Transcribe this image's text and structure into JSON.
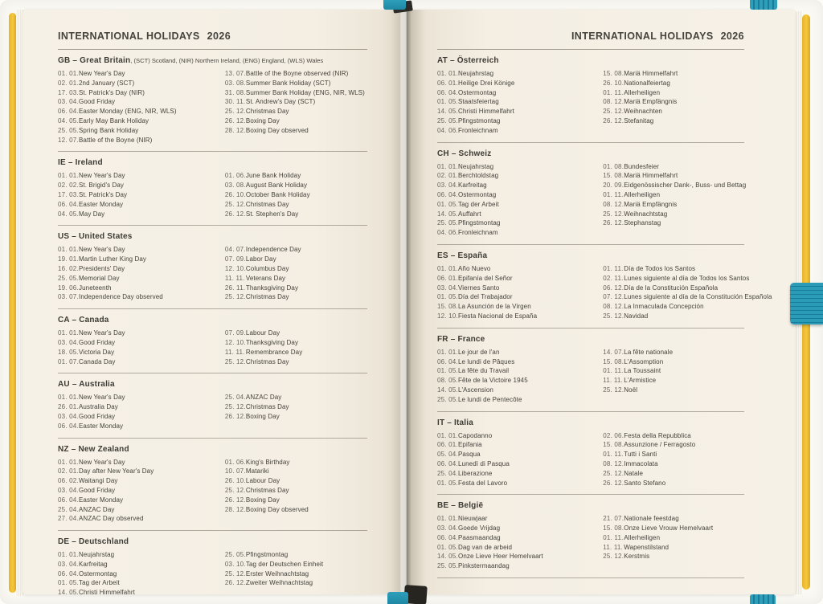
{
  "colors": {
    "cover_yellow": "#f4c83f",
    "elastic_teal": "#2596b2",
    "page_cream": "#f4eee3",
    "ink": "#44423c"
  },
  "pages": {
    "left": {
      "header": {
        "title": "INTERNATIONAL HOLIDAYS",
        "year": "2026"
      },
      "sections": [
        {
          "code": "gb",
          "title": "GB – Great Britain",
          "subtitle": ", (SCT) Scotland, (NIR) Northern Ireland, (ENG) England, (WLS) Wales",
          "col1": [
            {
              "d": "01. 01.",
              "t": "New Year's Day"
            },
            {
              "d": "02. 01.",
              "t": "2nd January (SCT)"
            },
            {
              "d": "17. 03.",
              "t": "St. Patrick's Day (NIR)"
            },
            {
              "d": "03. 04.",
              "t": "Good Friday"
            },
            {
              "d": "06. 04.",
              "t": "Easter Monday (ENG, NIR, WLS)"
            },
            {
              "d": "04. 05.",
              "t": "Early May Bank Holiday"
            },
            {
              "d": "25. 05.",
              "t": "Spring Bank Holiday"
            },
            {
              "d": "12. 07.",
              "t": "Battle of the Boyne (NIR)"
            }
          ],
          "col2": [
            {
              "d": "13. 07.",
              "t": "Battle of the Boyne observed (NIR)"
            },
            {
              "d": "03. 08.",
              "t": "Summer Bank Holiday (SCT)"
            },
            {
              "d": "31. 08.",
              "t": "Summer Bank Holiday (ENG, NIR, WLS)"
            },
            {
              "d": "30. 11.",
              "t": "St. Andrew's Day (SCT)"
            },
            {
              "d": "25. 12.",
              "t": "Christmas Day"
            },
            {
              "d": "26. 12.",
              "t": "Boxing Day"
            },
            {
              "d": "28. 12.",
              "t": "Boxing Day observed"
            }
          ]
        },
        {
          "code": "ie",
          "title": "IE – Ireland",
          "subtitle": "",
          "col1": [
            {
              "d": "01. 01.",
              "t": "New Year's Day"
            },
            {
              "d": "02. 02.",
              "t": "St. Brigid's Day"
            },
            {
              "d": "17. 03.",
              "t": "St. Patrick's Day"
            },
            {
              "d": "06. 04.",
              "t": "Easter Monday"
            },
            {
              "d": "04. 05.",
              "t": "May Day"
            }
          ],
          "col2": [
            {
              "d": "01. 06.",
              "t": "June Bank Holiday"
            },
            {
              "d": "03. 08.",
              "t": "August Bank Holiday"
            },
            {
              "d": "26. 10.",
              "t": "October Bank Holiday"
            },
            {
              "d": "25. 12.",
              "t": "Christmas Day"
            },
            {
              "d": "26. 12.",
              "t": "St. Stephen's Day"
            }
          ]
        },
        {
          "code": "us",
          "title": "US – United States",
          "subtitle": "",
          "col1": [
            {
              "d": "01. 01.",
              "t": "New Year's Day"
            },
            {
              "d": "19. 01.",
              "t": "Martin Luther King Day"
            },
            {
              "d": "16. 02.",
              "t": "Presidents' Day"
            },
            {
              "d": "25. 05.",
              "t": "Memorial Day"
            },
            {
              "d": "19. 06.",
              "t": "Juneteenth"
            },
            {
              "d": "03. 07.",
              "t": "Independence Day observed"
            }
          ],
          "col2": [
            {
              "d": "04. 07.",
              "t": "Independence Day"
            },
            {
              "d": "07. 09.",
              "t": "Labor Day"
            },
            {
              "d": "12. 10.",
              "t": "Columbus Day"
            },
            {
              "d": "11. 11.",
              "t": "Veterans Day"
            },
            {
              "d": "26. 11.",
              "t": "Thanksgiving Day"
            },
            {
              "d": "25. 12.",
              "t": "Christmas Day"
            }
          ]
        },
        {
          "code": "ca",
          "title": "CA – Canada",
          "subtitle": "",
          "col1": [
            {
              "d": "01. 01.",
              "t": "New Year's Day"
            },
            {
              "d": "03. 04.",
              "t": "Good Friday"
            },
            {
              "d": "18. 05.",
              "t": "Victoria Day"
            },
            {
              "d": "01. 07.",
              "t": "Canada Day"
            }
          ],
          "col2": [
            {
              "d": "07. 09.",
              "t": "Labour Day"
            },
            {
              "d": "12. 10.",
              "t": "Thanksgiving Day"
            },
            {
              "d": "11. 11.",
              "t": "Remembrance Day"
            },
            {
              "d": "25. 12.",
              "t": "Christmas Day"
            }
          ]
        },
        {
          "code": "au",
          "title": "AU – Australia",
          "subtitle": "",
          "col1": [
            {
              "d": "01. 01.",
              "t": "New Year's Day"
            },
            {
              "d": "26. 01.",
              "t": "Australia Day"
            },
            {
              "d": "03. 04.",
              "t": "Good Friday"
            },
            {
              "d": "06. 04.",
              "t": "Easter Monday"
            }
          ],
          "col2": [
            {
              "d": "25. 04.",
              "t": "ANZAC Day"
            },
            {
              "d": "25. 12.",
              "t": "Christmas Day"
            },
            {
              "d": "26. 12.",
              "t": "Boxing Day"
            }
          ]
        },
        {
          "code": "nz",
          "title": "NZ – New Zealand",
          "subtitle": "",
          "col1": [
            {
              "d": "01. 01.",
              "t": "New Year's Day"
            },
            {
              "d": "02. 01.",
              "t": "Day after New Year's Day"
            },
            {
              "d": "06. 02.",
              "t": "Waitangi Day"
            },
            {
              "d": "03. 04.",
              "t": "Good Friday"
            },
            {
              "d": "06. 04.",
              "t": "Easter Monday"
            },
            {
              "d": "25. 04.",
              "t": "ANZAC Day"
            },
            {
              "d": "27. 04.",
              "t": "ANZAC Day observed"
            }
          ],
          "col2": [
            {
              "d": "01. 06.",
              "t": "King's Birthday"
            },
            {
              "d": "10. 07.",
              "t": "Matariki"
            },
            {
              "d": "26. 10.",
              "t": "Labour Day"
            },
            {
              "d": "25. 12.",
              "t": "Christmas Day"
            },
            {
              "d": "26. 12.",
              "t": "Boxing Day"
            },
            {
              "d": "28. 12.",
              "t": "Boxing Day observed"
            }
          ]
        },
        {
          "code": "de",
          "title": "DE – Deutschland",
          "subtitle": "",
          "col1": [
            {
              "d": "01. 01.",
              "t": "Neujahrstag"
            },
            {
              "d": "03. 04.",
              "t": "Karfreitag"
            },
            {
              "d": "06. 04.",
              "t": "Ostermontag"
            },
            {
              "d": "01. 05.",
              "t": "Tag der Arbeit"
            },
            {
              "d": "14. 05.",
              "t": "Christi Himmelfahrt"
            }
          ],
          "col2": [
            {
              "d": "25. 05.",
              "t": "Pfingstmontag"
            },
            {
              "d": "03. 10.",
              "t": "Tag der Deutschen Einheit"
            },
            {
              "d": "25. 12.",
              "t": "Erster Weihnachtstag"
            },
            {
              "d": "26. 12.",
              "t": "Zweiter Weihnachtstag"
            }
          ]
        }
      ]
    },
    "right": {
      "header": {
        "title": "INTERNATIONAL HOLIDAYS",
        "year": "2026"
      },
      "sections": [
        {
          "code": "at",
          "title": "AT – Österreich",
          "subtitle": "",
          "col1": [
            {
              "d": "01. 01.",
              "t": "Neujahrstag"
            },
            {
              "d": "06. 01.",
              "t": "Heilige Drei Könige"
            },
            {
              "d": "06. 04.",
              "t": "Ostermontag"
            },
            {
              "d": "01. 05.",
              "t": "Staatsfeiertag"
            },
            {
              "d": "14. 05.",
              "t": "Christi Himmelfahrt"
            },
            {
              "d": "25. 05.",
              "t": "Pfingstmontag"
            },
            {
              "d": "04. 06.",
              "t": "Fronleichnam"
            }
          ],
          "col2": [
            {
              "d": "15. 08.",
              "t": "Mariä Himmelfahrt"
            },
            {
              "d": "26. 10.",
              "t": "Nationalfeiertag"
            },
            {
              "d": "01. 11.",
              "t": "Allerheiligen"
            },
            {
              "d": "08. 12.",
              "t": "Mariä Empfängnis"
            },
            {
              "d": "25. 12.",
              "t": "Weihnachten"
            },
            {
              "d": "26. 12.",
              "t": "Stefanitag"
            }
          ]
        },
        {
          "code": "ch",
          "title": "CH – Schweiz",
          "subtitle": "",
          "col1": [
            {
              "d": "01. 01.",
              "t": "Neujahrstag"
            },
            {
              "d": "02. 01.",
              "t": "Berchtoldstag"
            },
            {
              "d": "03. 04.",
              "t": "Karfreitag"
            },
            {
              "d": "06. 04.",
              "t": "Ostermontag"
            },
            {
              "d": "01. 05.",
              "t": "Tag der Arbeit"
            },
            {
              "d": "14. 05.",
              "t": "Auffahrt"
            },
            {
              "d": "25. 05.",
              "t": "Pfingstmontag"
            },
            {
              "d": "04. 06.",
              "t": "Fronleichnam"
            }
          ],
          "col2": [
            {
              "d": "01. 08.",
              "t": "Bundesfeier"
            },
            {
              "d": "15. 08.",
              "t": "Mariä Himmelfahrt"
            },
            {
              "d": "20. 09.",
              "t": "Eidgenössischer Dank-, Buss- und Bettag"
            },
            {
              "d": "01. 11.",
              "t": "Allerheiligen"
            },
            {
              "d": "08. 12.",
              "t": "Mariä Empfängnis"
            },
            {
              "d": "25. 12.",
              "t": "Weihnachtstag"
            },
            {
              "d": "26. 12.",
              "t": "Stephanstag"
            }
          ]
        },
        {
          "code": "es",
          "title": "ES – España",
          "subtitle": "",
          "col1": [
            {
              "d": "01. 01.",
              "t": "Año Nuevo"
            },
            {
              "d": "06. 01.",
              "t": "Epifanía del Señor"
            },
            {
              "d": "03. 04.",
              "t": "Viernes Santo"
            },
            {
              "d": "01. 05.",
              "t": "Día del Trabajador"
            },
            {
              "d": "15. 08.",
              "t": "La Asunción de la Virgen"
            },
            {
              "d": "12. 10.",
              "t": "Fiesta Nacional de España"
            }
          ],
          "col2": [
            {
              "d": "01. 11.",
              "t": "Día de Todos los Santos"
            },
            {
              "d": "02. 11.",
              "t": "Lunes siguiente al día de Todos los Santos"
            },
            {
              "d": "06. 12.",
              "t": "Día de la Constitución Española"
            },
            {
              "d": "07. 12.",
              "t": "Lunes siguiente al día de la Constitución Española"
            },
            {
              "d": "08. 12.",
              "t": "La Inmaculada Concepción"
            },
            {
              "d": "25. 12.",
              "t": "Navidad"
            }
          ]
        },
        {
          "code": "fr",
          "title": "FR – France",
          "subtitle": "",
          "col1": [
            {
              "d": "01. 01.",
              "t": "Le jour de l'an"
            },
            {
              "d": "06. 04.",
              "t": "Le lundi de Pâques"
            },
            {
              "d": "01. 05.",
              "t": "La fête du Travail"
            },
            {
              "d": "08. 05.",
              "t": "Fête de la Victoire 1945"
            },
            {
              "d": "14. 05.",
              "t": "L'Ascension"
            },
            {
              "d": "25. 05.",
              "t": "Le lundi de Pentecôte"
            }
          ],
          "col2": [
            {
              "d": "14. 07.",
              "t": "La fête nationale"
            },
            {
              "d": "15. 08.",
              "t": "L'Assomption"
            },
            {
              "d": "01. 11.",
              "t": "La Toussaint"
            },
            {
              "d": "11. 11.",
              "t": "L'Armistice"
            },
            {
              "d": "25. 12.",
              "t": "Noël"
            }
          ]
        },
        {
          "code": "it",
          "title": "IT – Italia",
          "subtitle": "",
          "col1": [
            {
              "d": "01. 01.",
              "t": "Capodanno"
            },
            {
              "d": "06. 01.",
              "t": "Epifania"
            },
            {
              "d": "05. 04.",
              "t": "Pasqua"
            },
            {
              "d": "06. 04.",
              "t": "Lunedì di Pasqua"
            },
            {
              "d": "25. 04.",
              "t": "Liberazione"
            },
            {
              "d": "01. 05.",
              "t": "Festa del Lavoro"
            }
          ],
          "col2": [
            {
              "d": "02. 06.",
              "t": "Festa della Repubblica"
            },
            {
              "d": "15. 08.",
              "t": "Assunzione / Ferragosto"
            },
            {
              "d": "01. 11.",
              "t": "Tutti i Santi"
            },
            {
              "d": "08. 12.",
              "t": "Immacolata"
            },
            {
              "d": "25. 12.",
              "t": "Natale"
            },
            {
              "d": "26. 12.",
              "t": "Santo Stefano"
            }
          ]
        },
        {
          "code": "be",
          "title": "BE – België",
          "subtitle": "",
          "col1": [
            {
              "d": "01. 01.",
              "t": "Nieuwjaar"
            },
            {
              "d": "03. 04.",
              "t": "Goede Vrijdag"
            },
            {
              "d": "06. 04.",
              "t": "Paasmaandag"
            },
            {
              "d": "01. 05.",
              "t": "Dag van de arbeid"
            },
            {
              "d": "14. 05.",
              "t": "Onze Lieve Heer Hemelvaart"
            },
            {
              "d": "25. 05.",
              "t": "Pinkstermaandag"
            }
          ],
          "col2": [
            {
              "d": "21. 07.",
              "t": "Nationale feestdag"
            },
            {
              "d": "15. 08.",
              "t": "Onze Lieve Vrouw Hemelvaart"
            },
            {
              "d": "01. 11.",
              "t": "Allerheiligen"
            },
            {
              "d": "11. 11.",
              "t": "Wapenstilstand"
            },
            {
              "d": "25. 12.",
              "t": "Kerstmis"
            }
          ]
        }
      ]
    }
  }
}
